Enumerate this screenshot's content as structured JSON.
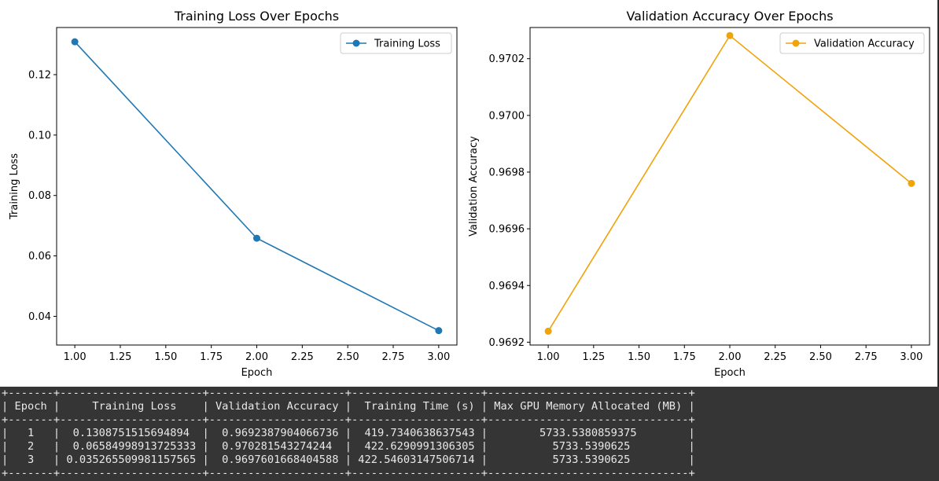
{
  "chart_data": [
    {
      "type": "line",
      "title": "Training Loss Over Epochs",
      "xlabel": "Epoch",
      "ylabel": "Training Loss",
      "x": [
        1,
        2,
        3
      ],
      "series": [
        {
          "name": "Training Loss",
          "values": [
            0.1308751515694894,
            0.06584998913725333,
            0.035265509981157565
          ],
          "color": "#1f77b4"
        }
      ],
      "xlim": [
        0.9,
        3.1
      ],
      "ylim": [
        0.0305,
        0.1356
      ],
      "xticks": [
        1.0,
        1.25,
        1.5,
        1.75,
        2.0,
        2.25,
        2.5,
        2.75,
        3.0
      ],
      "xtick_labels": [
        "1.00",
        "1.25",
        "1.50",
        "1.75",
        "2.00",
        "2.25",
        "2.50",
        "2.75",
        "3.00"
      ],
      "yticks": [
        0.04,
        0.06,
        0.08,
        0.1,
        0.12
      ],
      "ytick_labels": [
        "0.04",
        "0.06",
        "0.08",
        "0.10",
        "0.12"
      ],
      "grid": false,
      "legend": "top-right"
    },
    {
      "type": "line",
      "title": "Validation Accuracy Over Epochs",
      "xlabel": "Epoch",
      "ylabel": "Validation Accuracy",
      "x": [
        1,
        2,
        3
      ],
      "series": [
        {
          "name": "Validation Accuracy",
          "values": [
            0.9692387904066736,
            0.970281543274244,
            0.9697601668404588
          ],
          "color": "#f0a30a"
        }
      ],
      "xlim": [
        0.9,
        3.1
      ],
      "ylim": [
        0.96919,
        0.97031
      ],
      "xticks": [
        1.0,
        1.25,
        1.5,
        1.75,
        2.0,
        2.25,
        2.5,
        2.75,
        3.0
      ],
      "xtick_labels": [
        "1.00",
        "1.25",
        "1.50",
        "1.75",
        "2.00",
        "2.25",
        "2.50",
        "2.75",
        "3.00"
      ],
      "yticks": [
        0.9692,
        0.9694,
        0.9696,
        0.9698,
        0.97,
        0.9702
      ],
      "ytick_labels": [
        "0.9692",
        "0.9694",
        "0.9696",
        "0.9698",
        "0.9700",
        "0.9702"
      ],
      "grid": false,
      "legend": "top-right"
    }
  ],
  "table": {
    "headers": [
      "Epoch",
      "Training Loss",
      "Validation Accuracy",
      "Training Time (s)",
      "Max GPU Memory Allocated (MB)"
    ],
    "rows": [
      [
        "1",
        "0.1308751515694894",
        "0.9692387904066736",
        "419.7340638637543",
        "5733.5380859375"
      ],
      [
        "2",
        "0.06584998913725333",
        "0.970281543274244",
        "422.6290991306305",
        "5733.5390625"
      ],
      [
        "3",
        "0.035265509981157565",
        "0.9697601668404588",
        "422.54603147506714",
        "5733.5390625"
      ]
    ]
  }
}
